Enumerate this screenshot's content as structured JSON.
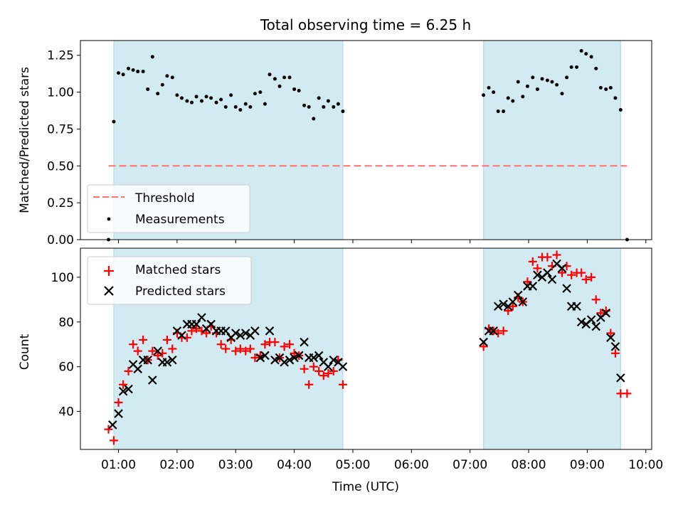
{
  "figure_title": "Total observing time = 6.25 h",
  "colors": {
    "shade": "#add8e6",
    "threshold": "#ff7070",
    "measurements": "#000000",
    "matched": "#ff0000",
    "predicted": "#000000"
  },
  "chart_data": [
    {
      "id": "ratio",
      "type": "scatter",
      "title": "Total observing time = 6.25 h",
      "xlabel": "",
      "ylabel": "Matched/Predicted stars",
      "xlim": [
        0.35,
        10.1
      ],
      "ylim": [
        0,
        1.35
      ],
      "yticks": [
        0.0,
        0.25,
        0.5,
        0.75,
        1.0,
        1.25
      ],
      "ytick_labels": [
        "0.00",
        "0.25",
        "0.50",
        "0.75",
        "1.00",
        "1.25"
      ],
      "xticks": [
        1,
        2,
        3,
        4,
        5,
        6,
        7,
        8,
        9,
        10
      ],
      "show_xtick_labels": false,
      "grid": false,
      "legend": {
        "placement": "lower-left",
        "entries": [
          {
            "label": "Threshold",
            "marker": "dash-line",
            "series": "threshold"
          },
          {
            "label": "Measurements",
            "marker": "dot",
            "series": "measurements"
          }
        ]
      },
      "shaded_intervals": [
        [
          0.92,
          4.83
        ],
        [
          7.23,
          9.57
        ]
      ],
      "threshold": {
        "name": "Threshold",
        "value": 0.5,
        "x_range": [
          0.83,
          9.68
        ]
      },
      "measurements": {
        "name": "Measurements",
        "x": [
          0.83,
          0.92,
          1.0,
          1.08,
          1.17,
          1.25,
          1.33,
          1.42,
          1.5,
          1.58,
          1.67,
          1.75,
          1.83,
          1.92,
          2.0,
          2.08,
          2.17,
          2.25,
          2.33,
          2.42,
          2.5,
          2.58,
          2.67,
          2.75,
          2.83,
          2.92,
          3.0,
          3.08,
          3.17,
          3.25,
          3.33,
          3.42,
          3.5,
          3.58,
          3.67,
          3.75,
          3.83,
          3.92,
          4.0,
          4.08,
          4.17,
          4.25,
          4.33,
          4.42,
          4.5,
          4.58,
          4.67,
          4.75,
          4.83,
          7.23,
          7.32,
          7.4,
          7.48,
          7.57,
          7.65,
          7.73,
          7.82,
          7.9,
          7.98,
          8.07,
          8.15,
          8.23,
          8.32,
          8.4,
          8.48,
          8.57,
          8.65,
          8.73,
          8.82,
          8.9,
          8.98,
          9.07,
          9.15,
          9.23,
          9.32,
          9.4,
          9.48,
          9.57,
          9.68
        ],
        "y": [
          0.0,
          0.8,
          1.13,
          1.12,
          1.16,
          1.15,
          1.14,
          1.14,
          1.02,
          1.24,
          0.99,
          1.05,
          1.11,
          1.1,
          0.98,
          0.96,
          0.94,
          0.93,
          0.97,
          0.94,
          0.97,
          0.96,
          0.93,
          0.95,
          0.9,
          0.98,
          0.9,
          0.88,
          0.92,
          0.9,
          0.99,
          1.0,
          0.92,
          1.12,
          1.09,
          1.04,
          1.1,
          1.1,
          1.02,
          1.01,
          0.91,
          0.9,
          0.82,
          0.96,
          0.9,
          0.94,
          0.9,
          0.92,
          0.87,
          0.98,
          1.03,
          1.0,
          0.87,
          0.87,
          0.96,
          0.94,
          1.07,
          0.97,
          1.04,
          1.1,
          1.02,
          1.09,
          1.08,
          1.07,
          1.05,
          0.99,
          1.1,
          1.17,
          1.17,
          1.28,
          1.26,
          1.24,
          1.16,
          1.03,
          1.02,
          1.03,
          0.96,
          0.88,
          0.0
        ]
      }
    },
    {
      "id": "counts",
      "type": "scatter",
      "title": "",
      "xlabel": "Time (UTC)",
      "ylabel": "Count",
      "xlim": [
        0.35,
        10.1
      ],
      "ylim": [
        23,
        113
      ],
      "yticks": [
        40,
        60,
        80,
        100
      ],
      "ytick_labels": [
        "40",
        "60",
        "80",
        "100"
      ],
      "xticks": [
        1,
        2,
        3,
        4,
        5,
        6,
        7,
        8,
        9,
        10
      ],
      "xtick_labels": [
        "01:00",
        "02:00",
        "03:00",
        "04:00",
        "05:00",
        "06:00",
        "07:00",
        "08:00",
        "09:00",
        "10:00"
      ],
      "grid": false,
      "legend": {
        "placement": "top-left",
        "entries": [
          {
            "label": "Matched stars",
            "marker": "plus",
            "series": "matched"
          },
          {
            "label": "Predicted stars",
            "marker": "cross",
            "series": "predicted"
          }
        ]
      },
      "shaded_intervals": [
        [
          0.92,
          4.83
        ],
        [
          7.23,
          9.57
        ]
      ],
      "x": [
        0.83,
        0.92,
        1.0,
        1.08,
        1.17,
        1.25,
        1.33,
        1.42,
        1.5,
        1.58,
        1.67,
        1.75,
        1.83,
        1.92,
        2.0,
        2.08,
        2.17,
        2.25,
        2.33,
        2.42,
        2.5,
        2.58,
        2.67,
        2.75,
        2.83,
        2.92,
        3.0,
        3.08,
        3.17,
        3.25,
        3.33,
        3.42,
        3.5,
        3.58,
        3.67,
        3.75,
        3.83,
        3.92,
        4.0,
        4.08,
        4.17,
        4.25,
        4.33,
        4.42,
        4.5,
        4.58,
        4.67,
        4.75,
        4.83,
        7.23,
        7.32,
        7.4,
        7.48,
        7.57,
        7.65,
        7.73,
        7.82,
        7.9,
        7.98,
        8.07,
        8.15,
        8.23,
        8.32,
        8.4,
        8.48,
        8.57,
        8.65,
        8.73,
        8.82,
        8.9,
        8.98,
        9.07,
        9.15,
        9.23,
        9.32,
        9.4,
        9.48,
        9.57,
        9.68
      ],
      "series": [
        {
          "key": "matched",
          "name": "Matched stars",
          "marker": "plus",
          "x": [
            0.83,
            0.92,
            1.0,
            1.08,
            1.17,
            1.25,
            1.33,
            1.42,
            1.5,
            1.58,
            1.67,
            1.75,
            1.83,
            1.92,
            2.0,
            2.08,
            2.17,
            2.25,
            2.33,
            2.42,
            2.5,
            2.58,
            2.67,
            2.75,
            2.83,
            2.92,
            3.0,
            3.08,
            3.17,
            3.25,
            3.33,
            3.42,
            3.5,
            3.58,
            3.67,
            3.75,
            3.83,
            3.92,
            4.0,
            4.08,
            4.17,
            4.25,
            4.33,
            4.42,
            4.5,
            4.58,
            4.67,
            4.75,
            4.83,
            7.23,
            7.32,
            7.4,
            7.48,
            7.57,
            7.65,
            7.73,
            7.82,
            7.9,
            7.98,
            8.07,
            8.15,
            8.23,
            8.32,
            8.4,
            8.48,
            8.57,
            8.65,
            8.73,
            8.82,
            8.9,
            8.98,
            9.07,
            9.15,
            9.23,
            9.32,
            9.4,
            9.48,
            9.57,
            9.68
          ],
          "values": [
            32,
            27,
            44,
            52,
            58,
            70,
            67,
            72,
            63,
            67,
            65,
            66,
            72,
            68,
            75,
            73,
            73,
            76,
            77,
            76,
            75,
            78,
            75,
            70,
            68,
            72,
            67,
            68,
            67,
            68,
            64,
            65,
            70,
            71,
            71,
            64,
            69,
            70,
            66,
            65,
            59,
            52,
            60,
            58,
            56,
            57,
            58,
            63,
            52,
            69,
            77,
            76,
            75,
            76,
            85,
            87,
            91,
            89,
            98,
            107,
            104,
            109,
            109,
            105,
            110,
            102,
            105,
            101,
            102,
            102,
            99,
            100,
            90,
            84,
            85,
            75,
            66,
            48,
            48
          ]
        },
        {
          "key": "predicted",
          "name": "Predicted stars",
          "marker": "cross",
          "x": [
            0.9,
            1.0,
            1.08,
            1.17,
            1.25,
            1.33,
            1.42,
            1.5,
            1.58,
            1.67,
            1.75,
            1.83,
            1.92,
            2.0,
            2.08,
            2.17,
            2.25,
            2.33,
            2.42,
            2.5,
            2.58,
            2.67,
            2.75,
            2.83,
            2.92,
            3.0,
            3.08,
            3.17,
            3.25,
            3.33,
            3.42,
            3.5,
            3.58,
            3.67,
            3.75,
            3.83,
            3.92,
            4.0,
            4.08,
            4.17,
            4.25,
            4.33,
            4.42,
            4.5,
            4.58,
            4.67,
            4.75,
            4.83,
            7.23,
            7.32,
            7.4,
            7.48,
            7.57,
            7.65,
            7.73,
            7.82,
            7.9,
            7.98,
            8.07,
            8.15,
            8.23,
            8.32,
            8.4,
            8.48,
            8.57,
            8.65,
            8.73,
            8.82,
            8.9,
            8.98,
            9.07,
            9.15,
            9.23,
            9.32,
            9.4,
            9.48,
            9.57
          ],
          "values": [
            34,
            39,
            49,
            50,
            61,
            59,
            63,
            63,
            54,
            67,
            62,
            62,
            63,
            76,
            74,
            79,
            79,
            79,
            82,
            77,
            79,
            76,
            76,
            76,
            73,
            75,
            74,
            75,
            74,
            76,
            64,
            65,
            76,
            63,
            64,
            62,
            63,
            64,
            65,
            71,
            64,
            64,
            65,
            62,
            60,
            63,
            62,
            60,
            71,
            76,
            76,
            87,
            88,
            87,
            89,
            92,
            89,
            96,
            96,
            101,
            100,
            102,
            99,
            106,
            104,
            95,
            87,
            87,
            80,
            79,
            81,
            78,
            82,
            84,
            73,
            69,
            55
          ]
        }
      ]
    }
  ]
}
